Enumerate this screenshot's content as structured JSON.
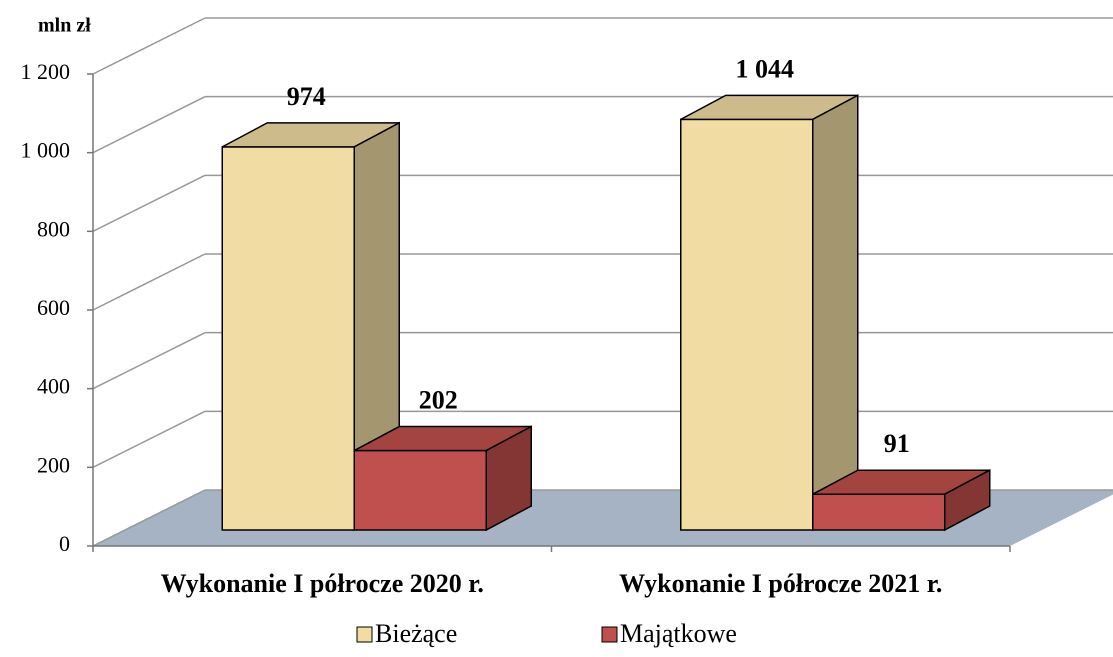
{
  "chart_data": {
    "type": "bar3d",
    "y_axis_label": "mln zł",
    "categories": [
      "Wykonanie I półrocze 2020 r.",
      "Wykonanie I półrocze 2021 r."
    ],
    "series": [
      {
        "name": "Bieżące",
        "color": "#f1dca3",
        "values": [
          974,
          1044
        ],
        "value_labels": [
          "974",
          "1 044"
        ]
      },
      {
        "name": "Majątkowe",
        "color": "#c0504d",
        "values": [
          202,
          91
        ],
        "value_labels": [
          "202",
          "91"
        ]
      }
    ],
    "ylim": [
      0,
      1200
    ],
    "yticks": [
      0,
      200,
      400,
      600,
      800,
      {
        "value": 1000,
        "label": "1 000"
      },
      {
        "value": 1200,
        "label": "1 200"
      }
    ],
    "grid": true,
    "legend": "bottom"
  }
}
